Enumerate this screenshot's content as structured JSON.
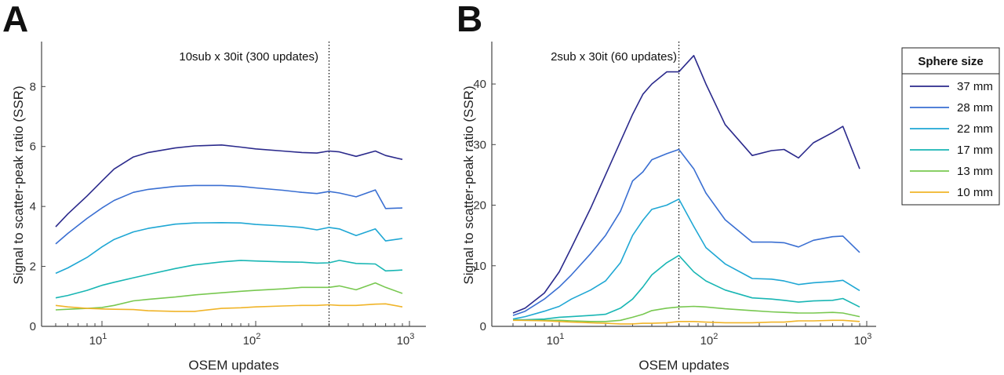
{
  "panels": [
    "A",
    "B"
  ],
  "legend": {
    "title": "Sphere size",
    "entries": [
      {
        "label": "37 mm",
        "color": "#2b2a8c"
      },
      {
        "label": "28 mm",
        "color": "#3a6fd2"
      },
      {
        "label": "22 mm",
        "color": "#1fa7d4"
      },
      {
        "label": "17 mm",
        "color": "#19b6b4"
      },
      {
        "label": "13 mm",
        "color": "#78c850"
      },
      {
        "label": "10 mm",
        "color": "#f0b428"
      }
    ]
  },
  "chart_data": [
    {
      "type": "line",
      "panel": "A",
      "xlabel": "OSEM updates",
      "ylabel": "Signal to scatter-peak ratio (SSR)",
      "xscale": "log",
      "xlim": [
        4.4,
        1000
      ],
      "ylim": [
        0,
        9.5
      ],
      "x_tick_labels": [
        "10^1",
        "10^2",
        "10^3"
      ],
      "y_ticks": [
        0,
        2,
        4,
        6,
        8
      ],
      "grid": false,
      "vline": {
        "x": 300,
        "label": "10sub x 30it (300 updates)",
        "style": "dotted"
      },
      "x": [
        5,
        6,
        8,
        10,
        12,
        16,
        20,
        30,
        40,
        60,
        80,
        100,
        150,
        200,
        250,
        300,
        350,
        450,
        600,
        700,
        900
      ],
      "series": [
        {
          "name": "37 mm",
          "values": [
            3.32,
            3.75,
            4.35,
            4.85,
            5.25,
            5.65,
            5.8,
            5.95,
            6.02,
            6.05,
            5.98,
            5.92,
            5.85,
            5.8,
            5.78,
            5.85,
            5.82,
            5.67,
            5.85,
            5.7,
            5.57
          ]
        },
        {
          "name": "28 mm",
          "values": [
            2.75,
            3.1,
            3.6,
            3.95,
            4.2,
            4.47,
            4.57,
            4.67,
            4.7,
            4.7,
            4.67,
            4.62,
            4.54,
            4.47,
            4.43,
            4.5,
            4.45,
            4.32,
            4.55,
            3.93,
            3.95
          ]
        },
        {
          "name": "22 mm",
          "values": [
            1.77,
            1.95,
            2.3,
            2.65,
            2.9,
            3.15,
            3.27,
            3.41,
            3.45,
            3.46,
            3.45,
            3.4,
            3.35,
            3.3,
            3.22,
            3.3,
            3.25,
            3.03,
            3.25,
            2.85,
            2.93
          ]
        },
        {
          "name": "17 mm",
          "values": [
            0.95,
            1.03,
            1.2,
            1.37,
            1.47,
            1.62,
            1.73,
            1.93,
            2.05,
            2.15,
            2.2,
            2.18,
            2.15,
            2.14,
            2.11,
            2.12,
            2.2,
            2.1,
            2.08,
            1.85,
            1.88
          ]
        },
        {
          "name": "13 mm",
          "values": [
            0.55,
            0.57,
            0.6,
            0.63,
            0.7,
            0.85,
            0.9,
            0.98,
            1.05,
            1.12,
            1.17,
            1.2,
            1.25,
            1.3,
            1.3,
            1.3,
            1.35,
            1.22,
            1.45,
            1.3,
            1.1
          ]
        },
        {
          "name": "10 mm",
          "values": [
            0.7,
            0.65,
            0.6,
            0.58,
            0.57,
            0.56,
            0.52,
            0.5,
            0.5,
            0.6,
            0.62,
            0.65,
            0.68,
            0.7,
            0.7,
            0.72,
            0.7,
            0.7,
            0.74,
            0.75,
            0.65
          ]
        }
      ]
    },
    {
      "type": "line",
      "panel": "B",
      "xlabel": "OSEM updates",
      "ylabel": "Signal to scatter-peak ratio (SSR)",
      "xscale": "log",
      "xlim": [
        4.4,
        1000
      ],
      "ylim": [
        0,
        47
      ],
      "x_tick_labels": [
        "10^1",
        "10^2",
        "10^3"
      ],
      "y_ticks": [
        0,
        10,
        20,
        30,
        40
      ],
      "grid": false,
      "vline": {
        "x": 60,
        "label": "2sub x 30it (60 updates)",
        "style": "dotted"
      },
      "x": [
        5,
        6,
        8,
        10,
        12,
        16,
        20,
        25,
        30,
        35,
        40,
        50,
        60,
        75,
        90,
        120,
        180,
        240,
        290,
        360,
        450,
        600,
        700,
        900
      ],
      "series": [
        {
          "name": "37 mm",
          "values": [
            2.2,
            3.0,
            5.5,
            9.0,
            13.0,
            19.5,
            25.0,
            30.5,
            35.0,
            38.3,
            40.0,
            42.0,
            42.0,
            44.7,
            40.0,
            33.3,
            28.2,
            29.0,
            29.2,
            27.8,
            30.3,
            32.0,
            33.0,
            26.0
          ]
        },
        {
          "name": "28 mm",
          "values": [
            1.8,
            2.5,
            4.5,
            6.5,
            8.5,
            12.0,
            15.0,
            19.0,
            24.0,
            25.5,
            27.5,
            28.5,
            29.2,
            26.0,
            22.0,
            17.6,
            13.9,
            13.9,
            13.8,
            13.1,
            14.2,
            14.8,
            14.9,
            12.2
          ]
        },
        {
          "name": "22 mm",
          "values": [
            1.2,
            1.6,
            2.5,
            3.3,
            4.5,
            6.0,
            7.5,
            10.5,
            15.0,
            17.5,
            19.3,
            20.0,
            21.0,
            16.5,
            13.0,
            10.3,
            7.9,
            7.8,
            7.5,
            6.9,
            7.2,
            7.4,
            7.6,
            5.9
          ]
        },
        {
          "name": "17 mm",
          "values": [
            1.1,
            1.1,
            1.2,
            1.5,
            1.6,
            1.8,
            2.0,
            3.0,
            4.5,
            6.5,
            8.5,
            10.5,
            11.7,
            9.0,
            7.5,
            6.0,
            4.7,
            4.5,
            4.3,
            4.0,
            4.2,
            4.3,
            4.6,
            3.2
          ]
        },
        {
          "name": "13 mm",
          "values": [
            1.05,
            1.0,
            1.0,
            1.0,
            0.9,
            0.8,
            0.8,
            1.0,
            1.5,
            2.0,
            2.6,
            3.0,
            3.2,
            3.3,
            3.2,
            2.9,
            2.6,
            2.4,
            2.3,
            2.2,
            2.2,
            2.3,
            2.2,
            1.6
          ]
        },
        {
          "name": "10 mm",
          "values": [
            1.0,
            1.0,
            0.9,
            0.8,
            0.7,
            0.6,
            0.5,
            0.4,
            0.4,
            0.5,
            0.5,
            0.6,
            0.8,
            0.8,
            0.7,
            0.6,
            0.6,
            0.7,
            0.7,
            0.9,
            0.9,
            1.0,
            1.0,
            0.8
          ]
        }
      ]
    }
  ]
}
